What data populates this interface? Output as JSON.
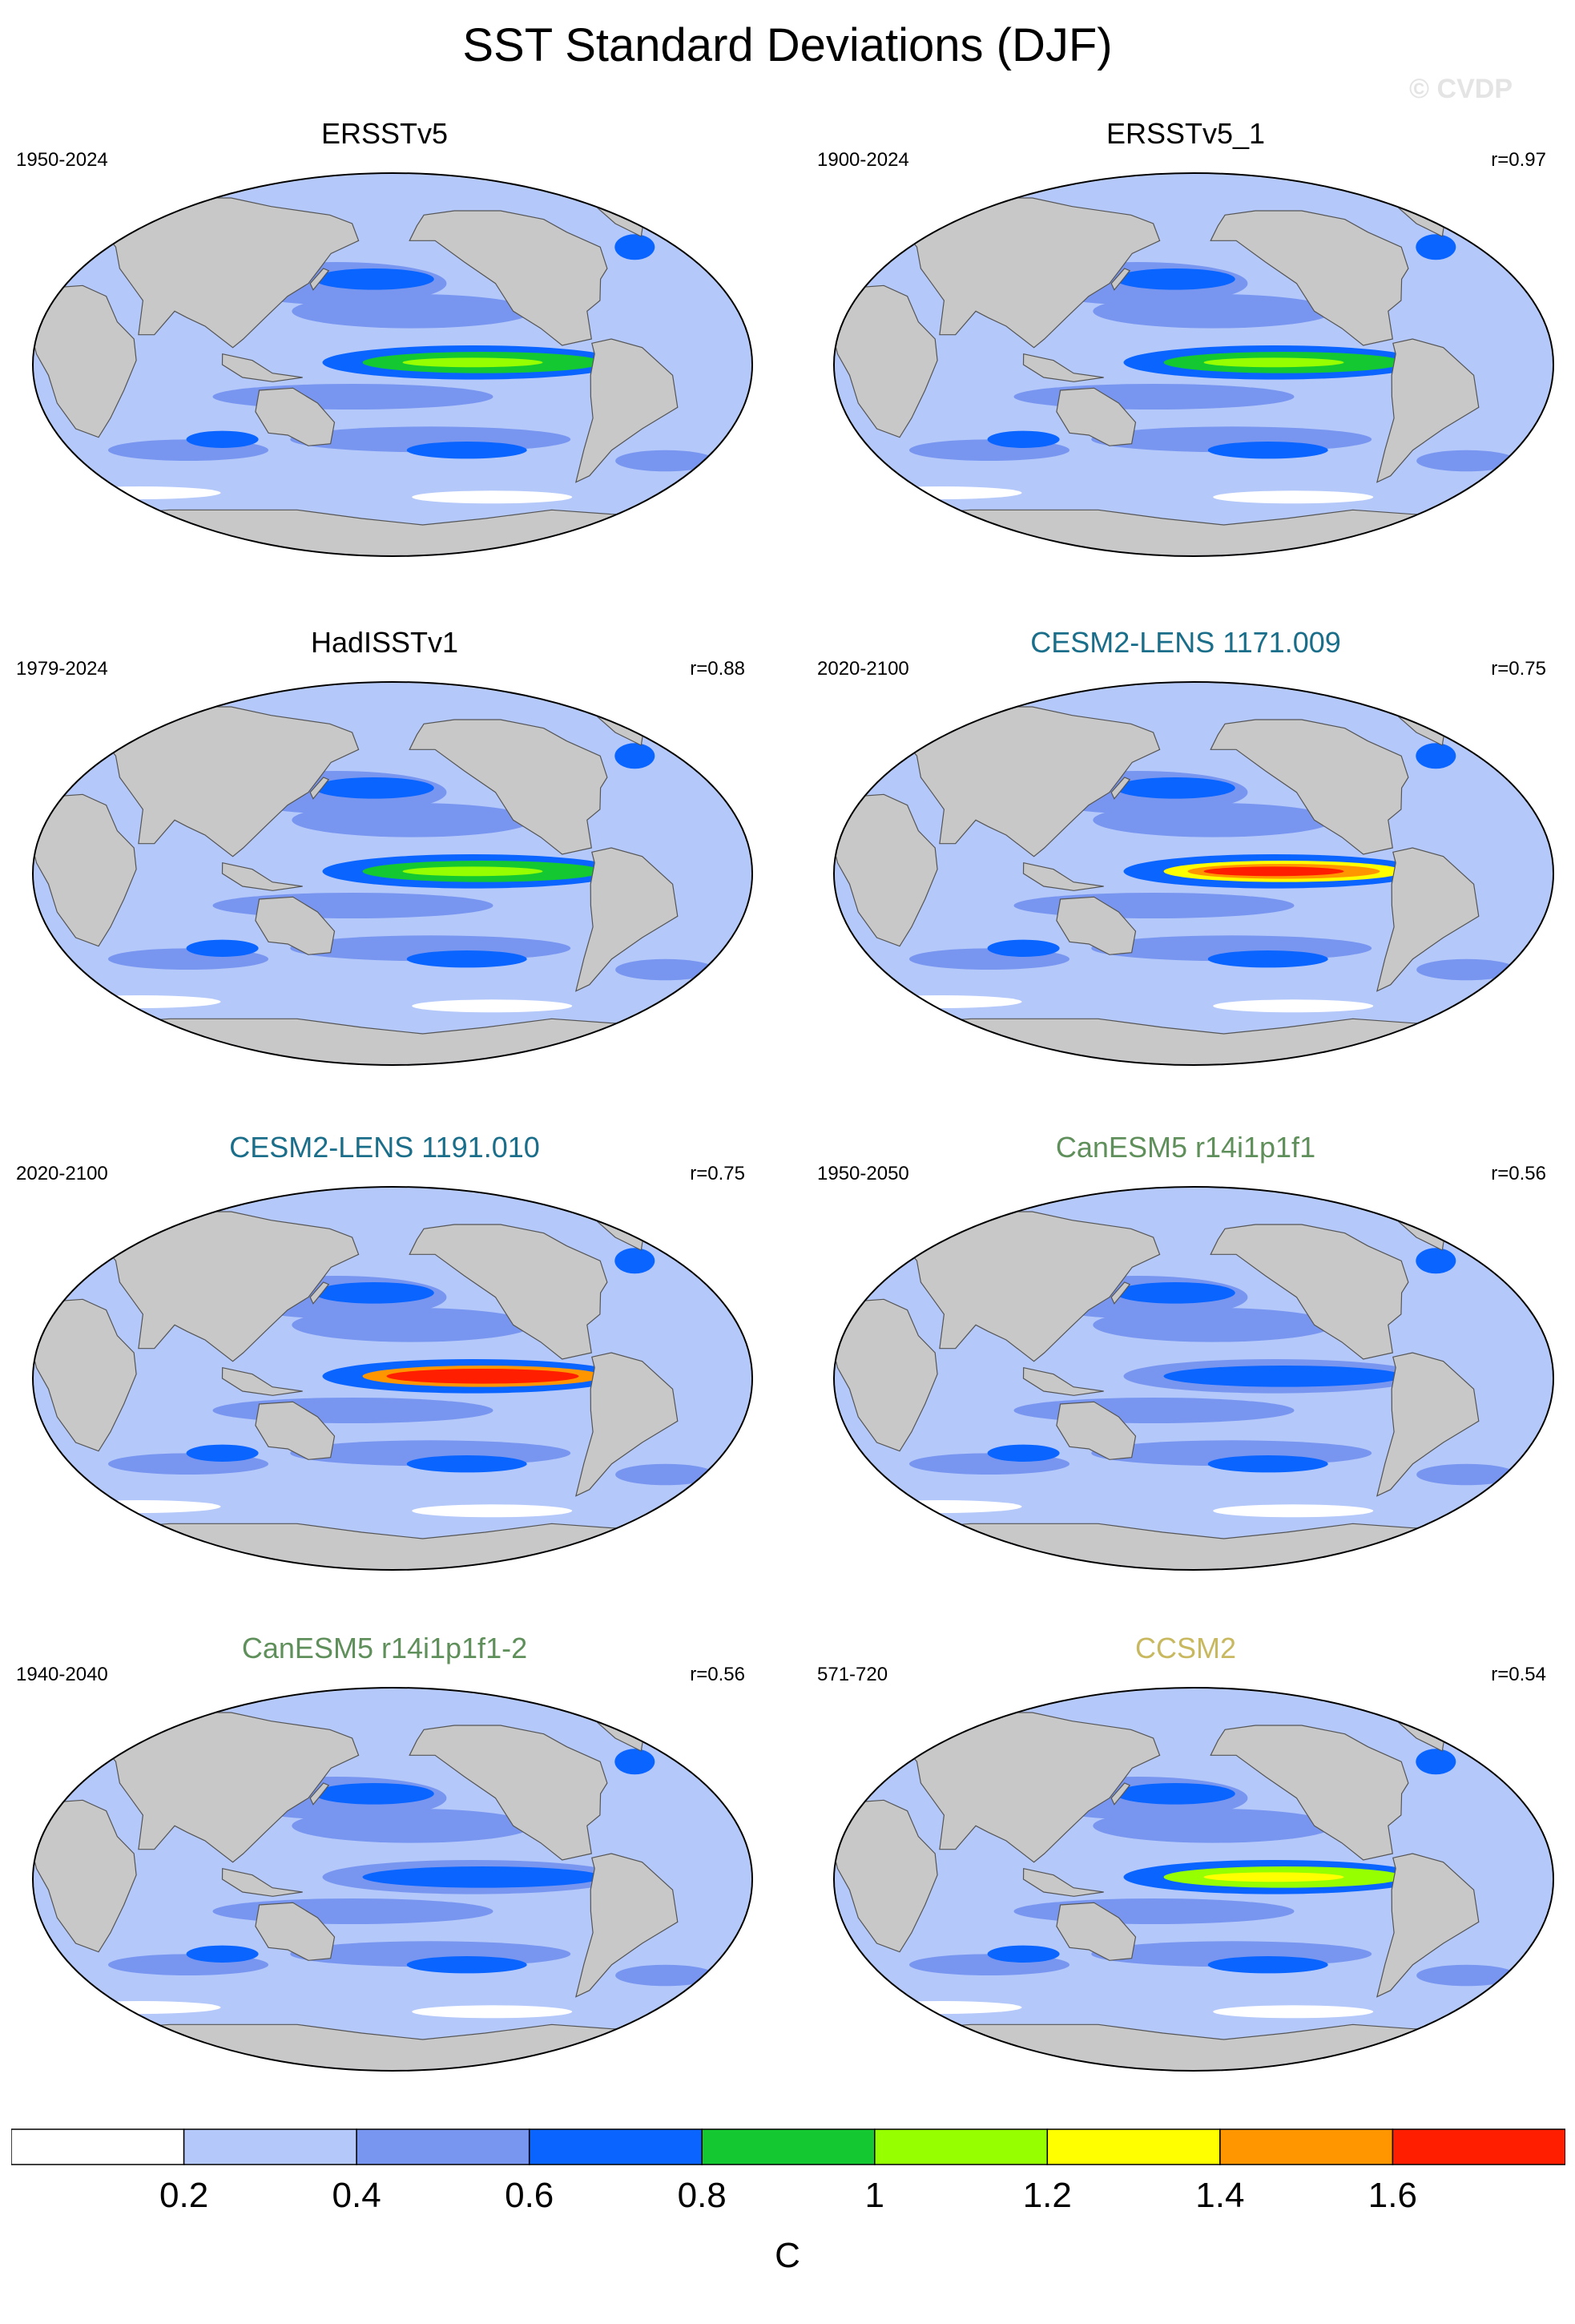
{
  "title": "SST Standard Deviations (DJF)",
  "watermark": "© CVDP",
  "panels": [
    {
      "name": "ERSSTv5",
      "period": "1950-2024",
      "corr": "",
      "title_color": "#000000",
      "enso": 1.0
    },
    {
      "name": "ERSSTv5_1",
      "period": "1900-2024",
      "corr": "r=0.97",
      "title_color": "#000000",
      "enso": 1.0
    },
    {
      "name": "HadISSTv1",
      "period": "1979-2024",
      "corr": "r=0.88",
      "title_color": "#000000",
      "enso": 1.05
    },
    {
      "name": "CESM2-LENS 1171.009",
      "period": "2020-2100",
      "corr": "r=0.75",
      "title_color": "#1a6e8a",
      "enso": 1.6
    },
    {
      "name": "CESM2-LENS 1191.010",
      "period": "2020-2100",
      "corr": "r=0.75",
      "title_color": "#1a6e8a",
      "enso": 1.7
    },
    {
      "name": "CanESM5 r14i1p1f1",
      "period": "1950-2050",
      "corr": "r=0.56",
      "title_color": "#5f8f5a",
      "enso": 0.75
    },
    {
      "name": "CanESM5 r14i1p1f1-2",
      "period": "1940-2040",
      "corr": "r=0.56",
      "title_color": "#5f8f5a",
      "enso": 0.75
    },
    {
      "name": "CCSM2",
      "period": "571-720",
      "corr": "r=0.54",
      "title_color": "#c8b860",
      "enso": 1.25
    }
  ],
  "colorbar": {
    "unit": "C",
    "tick_labels": [
      "0.2",
      "0.4",
      "0.6",
      "0.8",
      "1",
      "1.2",
      "1.4",
      "1.6"
    ],
    "colors": [
      "#ffffff",
      "#b4c8fa",
      "#7896f0",
      "#0a64ff",
      "#14c832",
      "#96ff00",
      "#ffff00",
      "#ff9600",
      "#ff1e00"
    ]
  },
  "map_colors": {
    "land": "#c8c8c8",
    "ocean_base": "#b4c8fa"
  }
}
